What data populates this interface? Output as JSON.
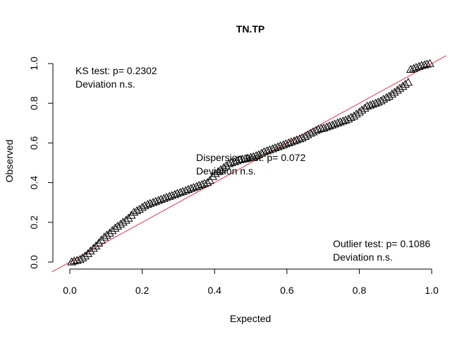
{
  "chart_data": {
    "type": "scatter",
    "title": "TN.TP",
    "xlabel": "Expected",
    "ylabel": "Observed",
    "xlim": [
      0,
      1
    ],
    "ylim": [
      0,
      1
    ],
    "xticks": [
      "0.0",
      "0.2",
      "0.4",
      "0.6",
      "0.8",
      "1.0"
    ],
    "yticks": [
      "0.0",
      "0.2",
      "0.4",
      "0.6",
      "0.8",
      "1.0"
    ],
    "point_marker": "triangle-open",
    "point_color": "#000000",
    "reference_line": {
      "intercept": 0,
      "slope": 1,
      "color": "#e8334a"
    },
    "points": [
      [
        0.005,
        0.0
      ],
      [
        0.012,
        0.005
      ],
      [
        0.02,
        0.008
      ],
      [
        0.028,
        0.012
      ],
      [
        0.035,
        0.02
      ],
      [
        0.042,
        0.03
      ],
      [
        0.05,
        0.042
      ],
      [
        0.057,
        0.055
      ],
      [
        0.065,
        0.068
      ],
      [
        0.072,
        0.08
      ],
      [
        0.08,
        0.095
      ],
      [
        0.087,
        0.11
      ],
      [
        0.095,
        0.125
      ],
      [
        0.102,
        0.135
      ],
      [
        0.11,
        0.145
      ],
      [
        0.117,
        0.158
      ],
      [
        0.125,
        0.17
      ],
      [
        0.132,
        0.18
      ],
      [
        0.14,
        0.19
      ],
      [
        0.147,
        0.2
      ],
      [
        0.155,
        0.21
      ],
      [
        0.162,
        0.22
      ],
      [
        0.17,
        0.235
      ],
      [
        0.177,
        0.25
      ],
      [
        0.185,
        0.258
      ],
      [
        0.192,
        0.265
      ],
      [
        0.2,
        0.275
      ],
      [
        0.207,
        0.283
      ],
      [
        0.215,
        0.29
      ],
      [
        0.222,
        0.295
      ],
      [
        0.23,
        0.3
      ],
      [
        0.237,
        0.305
      ],
      [
        0.245,
        0.31
      ],
      [
        0.252,
        0.315
      ],
      [
        0.26,
        0.32
      ],
      [
        0.267,
        0.325
      ],
      [
        0.275,
        0.33
      ],
      [
        0.282,
        0.335
      ],
      [
        0.29,
        0.34
      ],
      [
        0.297,
        0.345
      ],
      [
        0.305,
        0.35
      ],
      [
        0.312,
        0.355
      ],
      [
        0.32,
        0.36
      ],
      [
        0.327,
        0.365
      ],
      [
        0.335,
        0.37
      ],
      [
        0.342,
        0.375
      ],
      [
        0.35,
        0.38
      ],
      [
        0.357,
        0.385
      ],
      [
        0.365,
        0.39
      ],
      [
        0.372,
        0.395
      ],
      [
        0.38,
        0.4
      ],
      [
        0.387,
        0.41
      ],
      [
        0.395,
        0.43
      ],
      [
        0.402,
        0.445
      ],
      [
        0.41,
        0.455
      ],
      [
        0.417,
        0.465
      ],
      [
        0.425,
        0.475
      ],
      [
        0.432,
        0.485
      ],
      [
        0.44,
        0.495
      ],
      [
        0.447,
        0.5
      ],
      [
        0.455,
        0.505
      ],
      [
        0.462,
        0.51
      ],
      [
        0.47,
        0.515
      ],
      [
        0.477,
        0.518
      ],
      [
        0.485,
        0.52
      ],
      [
        0.492,
        0.523
      ],
      [
        0.5,
        0.527
      ],
      [
        0.507,
        0.53
      ],
      [
        0.515,
        0.535
      ],
      [
        0.522,
        0.54
      ],
      [
        0.53,
        0.548
      ],
      [
        0.537,
        0.555
      ],
      [
        0.545,
        0.56
      ],
      [
        0.552,
        0.565
      ],
      [
        0.56,
        0.57
      ],
      [
        0.567,
        0.575
      ],
      [
        0.575,
        0.58
      ],
      [
        0.582,
        0.585
      ],
      [
        0.59,
        0.59
      ],
      [
        0.597,
        0.595
      ],
      [
        0.605,
        0.6
      ],
      [
        0.612,
        0.605
      ],
      [
        0.62,
        0.61
      ],
      [
        0.627,
        0.615
      ],
      [
        0.635,
        0.62
      ],
      [
        0.642,
        0.625
      ],
      [
        0.65,
        0.632
      ],
      [
        0.657,
        0.64
      ],
      [
        0.665,
        0.648
      ],
      [
        0.672,
        0.655
      ],
      [
        0.68,
        0.662
      ],
      [
        0.687,
        0.668
      ],
      [
        0.695,
        0.672
      ],
      [
        0.702,
        0.675
      ],
      [
        0.71,
        0.68
      ],
      [
        0.717,
        0.685
      ],
      [
        0.725,
        0.69
      ],
      [
        0.732,
        0.695
      ],
      [
        0.74,
        0.7
      ],
      [
        0.747,
        0.705
      ],
      [
        0.755,
        0.71
      ],
      [
        0.762,
        0.715
      ],
      [
        0.77,
        0.72
      ],
      [
        0.777,
        0.728
      ],
      [
        0.785,
        0.735
      ],
      [
        0.792,
        0.745
      ],
      [
        0.8,
        0.755
      ],
      [
        0.807,
        0.765
      ],
      [
        0.815,
        0.775
      ],
      [
        0.822,
        0.785
      ],
      [
        0.83,
        0.79
      ],
      [
        0.837,
        0.795
      ],
      [
        0.845,
        0.8
      ],
      [
        0.852,
        0.805
      ],
      [
        0.86,
        0.812
      ],
      [
        0.867,
        0.82
      ],
      [
        0.875,
        0.828
      ],
      [
        0.882,
        0.835
      ],
      [
        0.89,
        0.845
      ],
      [
        0.897,
        0.855
      ],
      [
        0.905,
        0.865
      ],
      [
        0.912,
        0.875
      ],
      [
        0.92,
        0.885
      ],
      [
        0.927,
        0.895
      ],
      [
        0.935,
        0.905
      ],
      [
        0.942,
        0.97
      ],
      [
        0.95,
        0.975
      ],
      [
        0.957,
        0.98
      ],
      [
        0.965,
        0.985
      ],
      [
        0.972,
        0.99
      ],
      [
        0.98,
        0.993
      ],
      [
        0.987,
        0.997
      ],
      [
        0.995,
        1.0
      ]
    ],
    "annotations": [
      {
        "key": "ks",
        "lines": [
          "KS test: p= 0.2302",
          "Deviation  n.s."
        ]
      },
      {
        "key": "dispersion",
        "lines": [
          "Dispersion test: p= 0.072",
          "Deviation  n.s."
        ]
      },
      {
        "key": "outlier",
        "lines": [
          "Outlier test: p= 0.1086",
          "Deviation  n.s."
        ]
      }
    ]
  }
}
